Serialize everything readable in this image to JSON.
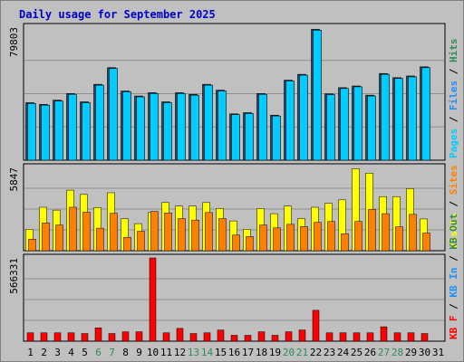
{
  "title": "Daily usage for September 2025",
  "colors": {
    "background": "#c0c0c0",
    "plot_bg": "#c0c0c0",
    "title": "#0000cc",
    "weekday_label": "#000000",
    "weekend_label": "#2e8b57",
    "pages": "#00ccff",
    "files": "#1e90ff",
    "hits": "#2e8b57",
    "visits": "#ffff00",
    "sites": "#ff8000",
    "kb_in": "#1e90ff",
    "kb_out": "#2e8b57",
    "kb_f": "#ff0000"
  },
  "chart_data": [
    {
      "type": "bar",
      "panel": "hits-files-pages",
      "ymax_label": "79803",
      "ylim": [
        0,
        79803
      ],
      "legend": [
        {
          "text": "Pages",
          "color": "#00ccff"
        },
        {
          "text": "Files",
          "color": "#1e90ff"
        },
        {
          "text": "Hits",
          "color": "#2e8b57"
        }
      ],
      "categories": [
        "1",
        "2",
        "3",
        "4",
        "5",
        "6",
        "7",
        "8",
        "9",
        "10",
        "11",
        "12",
        "13",
        "14",
        "15",
        "16",
        "17",
        "18",
        "19",
        "20",
        "21",
        "22",
        "23",
        "24",
        "25",
        "26",
        "27",
        "28",
        "29",
        "30",
        "31"
      ],
      "weekend_days": [
        "6",
        "7",
        "13",
        "14",
        "20",
        "21",
        "27",
        "28"
      ],
      "series": [
        {
          "name": "Hits",
          "values": [
            34500,
            33500,
            36000,
            40000,
            35000,
            45500,
            55500,
            41500,
            38500,
            40500,
            35000,
            40500,
            39500,
            45500,
            42000,
            27800,
            28500,
            40000,
            27000,
            48000,
            51500,
            78500,
            39800,
            43500,
            44500,
            39000,
            52000,
            49500,
            50500,
            56000,
            0
          ]
        },
        {
          "name": "Pages",
          "values": [
            34000,
            33000,
            35500,
            39500,
            34500,
            45000,
            55000,
            41000,
            38000,
            40000,
            34500,
            40000,
            39000,
            45000,
            41500,
            27300,
            28000,
            39500,
            26500,
            47500,
            51000,
            78000,
            39300,
            43000,
            44000,
            38500,
            51500,
            49000,
            50000,
            55500,
            0
          ]
        }
      ]
    },
    {
      "type": "bar",
      "panel": "visits-sites",
      "ymax_label": "5847",
      "ylim": [
        0,
        5847
      ],
      "legend": [
        {
          "text": "Visits",
          "color": "#ffff00"
        },
        {
          "text": "Sites",
          "color": "#ff8000"
        }
      ],
      "categories": [
        "1",
        "2",
        "3",
        "4",
        "5",
        "6",
        "7",
        "8",
        "9",
        "10",
        "11",
        "12",
        "13",
        "14",
        "15",
        "16",
        "17",
        "18",
        "19",
        "20",
        "21",
        "22",
        "23",
        "24",
        "25",
        "26",
        "27",
        "28",
        "29",
        "30",
        "31"
      ],
      "series": [
        {
          "name": "Visits",
          "values": [
            1500,
            3050,
            2850,
            4250,
            3950,
            3030,
            4070,
            2250,
            1900,
            2680,
            3380,
            3130,
            3130,
            3380,
            2960,
            2090,
            1500,
            2960,
            2600,
            3130,
            2260,
            3050,
            3320,
            3570,
            5760,
            5450,
            3800,
            3800,
            4360,
            2230,
            0
          ]
        },
        {
          "name": "Sites",
          "values": [
            810,
            1950,
            1800,
            3050,
            2700,
            1580,
            2630,
            940,
            1370,
            2750,
            2650,
            2260,
            2150,
            2680,
            2260,
            1100,
            1000,
            1800,
            1600,
            1850,
            1700,
            1990,
            2050,
            1190,
            2050,
            2900,
            2600,
            1680,
            2550,
            1240,
            0
          ]
        }
      ]
    },
    {
      "type": "bar",
      "panel": "kb-f-in-out",
      "ymax_label": "566331",
      "ylim": [
        0,
        566331
      ],
      "legend": [
        {
          "text": "KB F",
          "color": "#ff0000"
        },
        {
          "text": "KB In",
          "color": "#1e90ff"
        },
        {
          "text": "KB Out",
          "color": "#2e8b57"
        }
      ],
      "categories": [
        "1",
        "2",
        "3",
        "4",
        "5",
        "6",
        "7",
        "8",
        "9",
        "10",
        "11",
        "12",
        "13",
        "14",
        "15",
        "16",
        "17",
        "18",
        "19",
        "20",
        "21",
        "22",
        "23",
        "24",
        "25",
        "26",
        "27",
        "28",
        "29",
        "30",
        "31"
      ],
      "series": [
        {
          "name": "KB F",
          "values": [
            57000,
            57000,
            57000,
            57000,
            52000,
            91000,
            52000,
            64000,
            64000,
            566331,
            57000,
            87000,
            52000,
            57000,
            76000,
            40000,
            40000,
            64000,
            40000,
            64000,
            76000,
            210000,
            57000,
            57000,
            57000,
            57000,
            98000,
            57000,
            57000,
            52000,
            0
          ]
        }
      ]
    }
  ]
}
